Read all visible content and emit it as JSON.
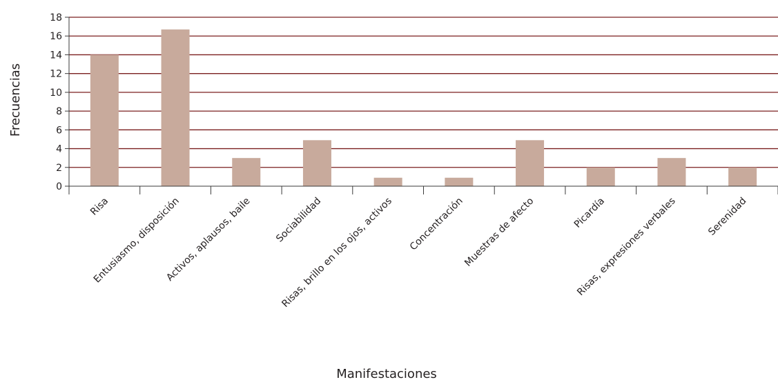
{
  "chart_data": {
    "type": "bar",
    "categories": [
      "Risa",
      "Entusiasmo, disposición",
      "Activos, aplausos, baile",
      "Sociabilidad",
      "Risas, brillo en los ojos, activos",
      "Concentración",
      "Muestras de afecto",
      "Picardía",
      "Risas, expresiones verbales",
      "Serenidad"
    ],
    "values": [
      14,
      16.7,
      3,
      4.9,
      0.9,
      0.9,
      4.9,
      2,
      3,
      2
    ],
    "xlabel": "Manifestaciones",
    "ylabel": "Frecuencias",
    "ylim": [
      0,
      18
    ],
    "yticks": [
      "0",
      "2",
      "4",
      "6",
      "8",
      "10",
      "12",
      "14",
      "16",
      "18"
    ],
    "grid": true,
    "bar_color": "#c8aa9c",
    "grid_color": "#7a1e1e",
    "axis_color": "#3a3a3a"
  }
}
